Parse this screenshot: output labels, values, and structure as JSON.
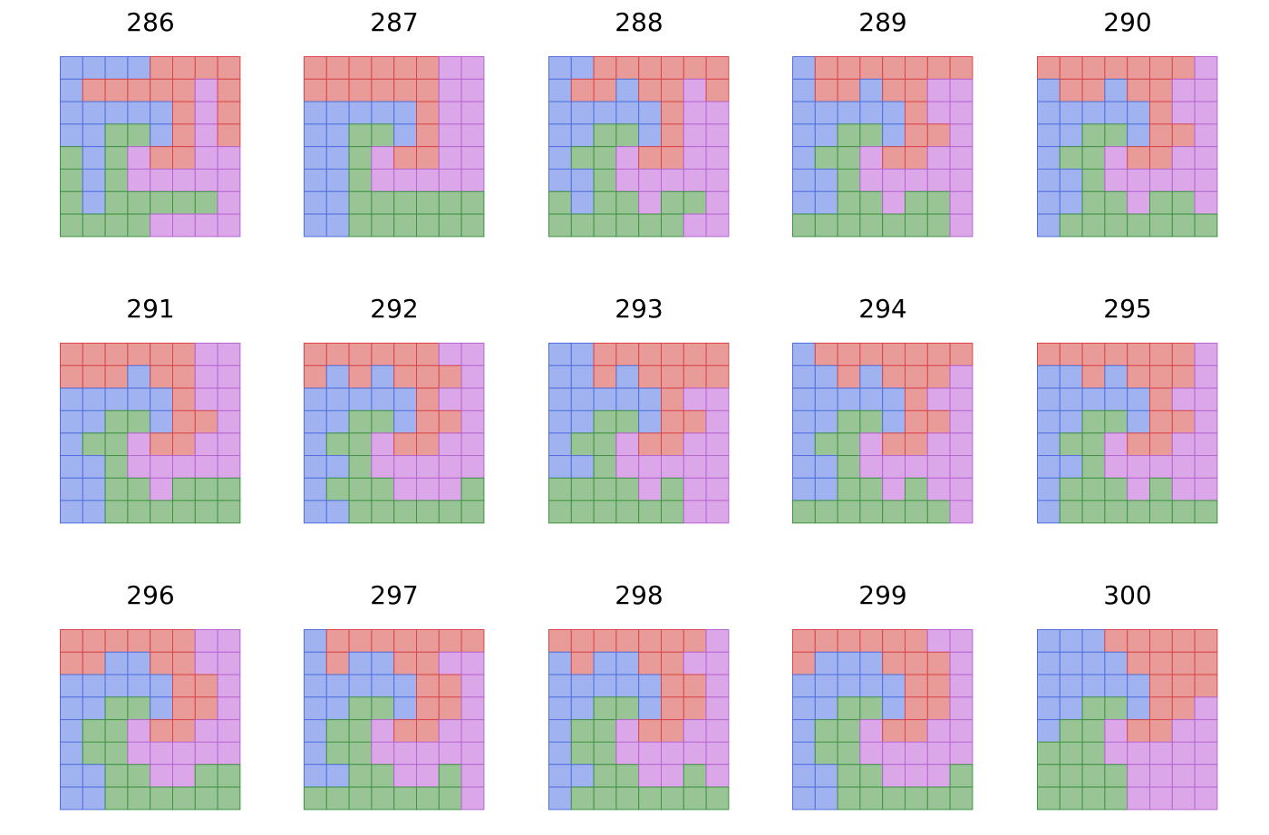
{
  "figure": {
    "palette": {
      "R": {
        "fill": "#e89b99",
        "stroke": "#d8464a"
      },
      "B": {
        "fill": "#a0b2f0",
        "stroke": "#5270dd"
      },
      "G": {
        "fill": "#99c596",
        "stroke": "#3f9244"
      },
      "P": {
        "fill": "#dca7e8",
        "stroke": "#b566d0"
      }
    },
    "panels": [
      {
        "label": "286",
        "grid": [
          "BBBBRRRR",
          "BRRRRRPR",
          "BBBBBRPR",
          "BBGGBRPR",
          "GBGPRRPP",
          "GBGPPPPP",
          "GBGGGGGP",
          "GGGGPPPP"
        ]
      },
      {
        "label": "287",
        "grid": [
          "RRRRRRPP",
          "RRRRRRPP",
          "BBBBBRPP",
          "BBGGBRPP",
          "BBGPRRPP",
          "BBGPPPPP",
          "BBGGGGGG",
          "BBGGGGGG"
        ]
      },
      {
        "label": "288",
        "grid": [
          "BBRRRRRR",
          "BRRBRRPR",
          "BBBBBRPP",
          "BBGGBRPP",
          "BGGPRRPP",
          "BBGPPPPP",
          "GBGGPGGP",
          "GGGGGGPP"
        ]
      },
      {
        "label": "289",
        "grid": [
          "BRRRRRRR",
          "BRRBRRPP",
          "BBBBBRPP",
          "BBGGBRRP",
          "BGGPRRPP",
          "BBGPPPPP",
          "BBGGPGGP",
          "GGGGGGGP"
        ]
      },
      {
        "label": "290",
        "grid": [
          "RRRRRRRP",
          "BRRBRRPP",
          "BBBBBRPP",
          "BBGGBRRP",
          "BGGPRRPP",
          "BBGPPPPP",
          "BBGGPGGP",
          "BGGGGGGG"
        ]
      },
      {
        "label": "291",
        "grid": [
          "RRRRRRPP",
          "RRRBRRPP",
          "BBBBBRPP",
          "BBGGBRRP",
          "BGGPRRPP",
          "BBGPPPPP",
          "BBGGPGGG",
          "BBGGGGGG"
        ]
      },
      {
        "label": "292",
        "grid": [
          "RRRRRRPP",
          "RBRBRRRP",
          "BBBBBRPP",
          "BBGGBRRP",
          "BGGPRRPP",
          "BBGPPPPP",
          "BGGGPPPG",
          "BBGGGGGG"
        ]
      },
      {
        "label": "293",
        "grid": [
          "BBRRRRRR",
          "BBRBRRRR",
          "BBBBBRPP",
          "BBGGBRRP",
          "BGGPRRPP",
          "BBGPPPPP",
          "GGGGPGPP",
          "GGGGGGPP"
        ]
      },
      {
        "label": "294",
        "grid": [
          "BRRRRRRR",
          "BBRBRRRP",
          "BBBBBRPP",
          "BBGGBRRP",
          "BGGPRRPP",
          "BBGPPPPP",
          "BBGGPGPP",
          "GGGGGGGP"
        ]
      },
      {
        "label": "295",
        "grid": [
          "RRRRRRRP",
          "BBRBRRRP",
          "BBBBBRPP",
          "BBGGBRRP",
          "BGGPRRPP",
          "BBGPPPPP",
          "BGGGPGPP",
          "BGGGGGGG"
        ]
      },
      {
        "label": "296",
        "grid": [
          "RRRRRRPP",
          "RRBBRRPP",
          "BBBBBRRP",
          "BBGGBRRP",
          "BGGPRRPP",
          "BGGPPPPP",
          "BBGGPPGG",
          "BBGGGGGG"
        ]
      },
      {
        "label": "297",
        "grid": [
          "BRRRRRRR",
          "BRBBRRPP",
          "BBBBBRRP",
          "BBGGBRRP",
          "BGGPRRPP",
          "BGGPPPPP",
          "BBGGPPGP",
          "GGGGGGGP"
        ]
      },
      {
        "label": "298",
        "grid": [
          "RRRRRRRP",
          "BRBBRRPP",
          "BBBBBRRP",
          "BBGGBRRP",
          "BGGPRRPP",
          "BGGPPPPP",
          "BBGGPPGP",
          "BGGGGGGG"
        ]
      },
      {
        "label": "299",
        "grid": [
          "RRRRRRPP",
          "RBBBRRRP",
          "BBBBBRRP",
          "BBGGBRRP",
          "BGGPRRPP",
          "BGGPPPPP",
          "BBGGPPPG",
          "BBGGGGGG"
        ]
      },
      {
        "label": "300",
        "grid": [
          "BBBRRRRR",
          "BBBBRRRR",
          "BBBBBRRR",
          "BBGGBRRP",
          "BGGPRRPP",
          "GGGPPPPP",
          "GGGGPPPP",
          "GGGGPPPP"
        ]
      }
    ]
  }
}
